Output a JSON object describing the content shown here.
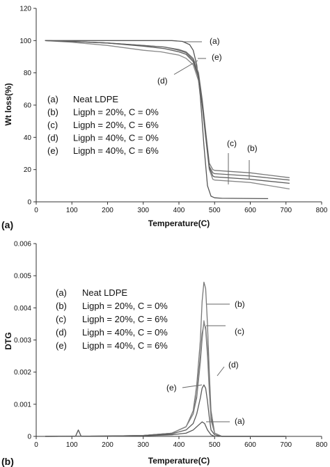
{
  "chart_data": [
    {
      "type": "line",
      "panel_label": "(a)",
      "xlabel": "Temperature(C)",
      "ylabel": "Wt loss(%)",
      "xlim": [
        0,
        800
      ],
      "ylim": [
        0,
        120
      ],
      "xticks": [
        "0",
        "100",
        "200",
        "300",
        "400",
        "500",
        "600",
        "700",
        "800"
      ],
      "yticks": [
        "0",
        "20",
        "40",
        "60",
        "80",
        "100",
        "120"
      ],
      "grid": false,
      "legend_position": "lower-left",
      "legend": [
        {
          "key": "(a)",
          "label": "Neat LDPE"
        },
        {
          "key": "(b)",
          "label": "Ligph = 20%, C = 0%"
        },
        {
          "key": "(c)",
          "label": "Ligph = 20%, C = 6%"
        },
        {
          "key": "(d)",
          "label": "Ligph = 40%, C = 0%"
        },
        {
          "key": "(e)",
          "label": "Ligph = 40%, C = 6%"
        }
      ],
      "series": [
        {
          "key": "a",
          "color": "#555555",
          "x": [
            25,
            100,
            200,
            300,
            380,
            410,
            430,
            440,
            450,
            460,
            470,
            480,
            490,
            500,
            520,
            650
          ],
          "y": [
            100,
            100,
            100,
            100,
            100,
            99.5,
            97.5,
            94,
            85,
            65,
            35,
            10,
            3.5,
            2.5,
            2.2,
            2
          ]
        },
        {
          "key": "b",
          "color": "#777777",
          "x": [
            25,
            100,
            200,
            300,
            360,
            400,
            420,
            440,
            455,
            465,
            475,
            485,
            495,
            500,
            600,
            710
          ],
          "y": [
            100,
            99.5,
            98.5,
            97,
            96,
            94.5,
            93,
            89,
            80,
            64,
            44,
            24,
            20,
            19.5,
            18,
            15
          ]
        },
        {
          "key": "c",
          "color": "#666666",
          "x": [
            25,
            100,
            200,
            300,
            360,
            400,
            420,
            440,
            455,
            465,
            475,
            485,
            495,
            500,
            600,
            710
          ],
          "y": [
            100,
            99.5,
            98.5,
            97,
            96,
            94,
            92.5,
            88,
            78,
            62,
            42,
            22,
            18,
            17.5,
            16,
            13.5
          ]
        },
        {
          "key": "d",
          "color": "#888888",
          "x": [
            25,
            100,
            200,
            300,
            350,
            400,
            420,
            440,
            455,
            465,
            475,
            485,
            495,
            500,
            600,
            710
          ],
          "y": [
            100,
            99,
            97,
            94,
            93,
            91,
            89,
            85,
            75,
            60,
            40,
            20,
            14,
            13.5,
            12,
            8
          ]
        },
        {
          "key": "e",
          "color": "#5a5a5a",
          "x": [
            25,
            100,
            200,
            300,
            360,
            400,
            420,
            440,
            455,
            465,
            475,
            485,
            495,
            500,
            600,
            710
          ],
          "y": [
            100,
            99.5,
            98.5,
            96.5,
            95,
            93,
            91.5,
            87,
            77,
            61,
            41,
            21,
            16,
            15.5,
            14,
            11.5
          ]
        }
      ],
      "curve_labels": [
        "(a)",
        "(e)",
        "(d)",
        "(c)",
        "(b)"
      ]
    },
    {
      "type": "line",
      "panel_label": "(b)",
      "xlabel": "Temperature(C)",
      "ylabel": "DTG",
      "xlim": [
        0,
        800
      ],
      "ylim": [
        0,
        0.006
      ],
      "xticks": [
        "0",
        "100",
        "200",
        "300",
        "400",
        "500",
        "600",
        "700",
        "800"
      ],
      "yticks": [
        "0",
        "0.001",
        "0.002",
        "0.003",
        "0.004",
        "0.005",
        "0.006"
      ],
      "grid": false,
      "legend_position": "left",
      "legend": [
        {
          "key": "(a)",
          "label": "Neat LDPE"
        },
        {
          "key": "(b)",
          "label": "Ligph = 20%, C = 0%"
        },
        {
          "key": "(c)",
          "label": "Ligph = 20%, C = 6%"
        },
        {
          "key": "(d)",
          "label": "Ligph = 40%, C = 0%"
        },
        {
          "key": "(e)",
          "label": "Ligph = 40%, C = 6%"
        }
      ],
      "series": [
        {
          "key": "a",
          "color": "#555555",
          "x": [
            25,
            110,
            118,
            126,
            200,
            300,
            380,
            420,
            440,
            455,
            465,
            472,
            480,
            490,
            500,
            520,
            700
          ],
          "y": [
            0,
            0,
            0.0002,
            0,
            0,
            2e-05,
            5e-05,
            0.0001,
            0.0002,
            0.00035,
            0.00045,
            0.0004,
            0.0002,
            5e-05,
            0,
            0,
            0
          ]
        },
        {
          "key": "b",
          "color": "#777777",
          "x": [
            25,
            200,
            300,
            380,
            420,
            440,
            450,
            460,
            465,
            470,
            475,
            480,
            485,
            490,
            500,
            520,
            700
          ],
          "y": [
            0,
            1e-05,
            3e-05,
            0.0001,
            0.0003,
            0.0008,
            0.0016,
            0.003,
            0.0042,
            0.0048,
            0.0046,
            0.0035,
            0.002,
            0.0008,
            0.0001,
            0,
            0
          ]
        },
        {
          "key": "c",
          "color": "#666666",
          "x": [
            25,
            200,
            300,
            380,
            420,
            440,
            450,
            460,
            465,
            470,
            475,
            480,
            485,
            490,
            500,
            520,
            700
          ],
          "y": [
            0,
            1e-05,
            3e-05,
            0.0001,
            0.0003,
            0.0007,
            0.0013,
            0.0025,
            0.0032,
            0.0035,
            0.0034,
            0.0027,
            0.0016,
            0.0006,
            0.0001,
            0,
            0
          ]
        },
        {
          "key": "d",
          "color": "#888888",
          "x": [
            25,
            200,
            300,
            380,
            420,
            440,
            450,
            460,
            465,
            470,
            475,
            480,
            485,
            490,
            500,
            520,
            700
          ],
          "y": [
            0,
            1e-05,
            3e-05,
            0.0001,
            0.0003,
            0.0007,
            0.0012,
            0.0023,
            0.003,
            0.0036,
            0.0033,
            0.0025,
            0.0014,
            0.0005,
            0.0001,
            0,
            0
          ]
        },
        {
          "key": "e",
          "color": "#5a5a5a",
          "x": [
            25,
            200,
            300,
            380,
            420,
            440,
            450,
            460,
            465,
            470,
            475,
            480,
            485,
            490,
            500,
            520,
            700
          ],
          "y": [
            0,
            1e-05,
            2e-05,
            8e-05,
            0.0002,
            0.0004,
            0.0007,
            0.0012,
            0.0015,
            0.0016,
            0.0015,
            0.0011,
            0.0006,
            0.0002,
            5e-05,
            0,
            0
          ]
        }
      ],
      "curve_labels": [
        "(b)",
        "(c)",
        "(d)",
        "(e)",
        "(a)"
      ]
    }
  ]
}
